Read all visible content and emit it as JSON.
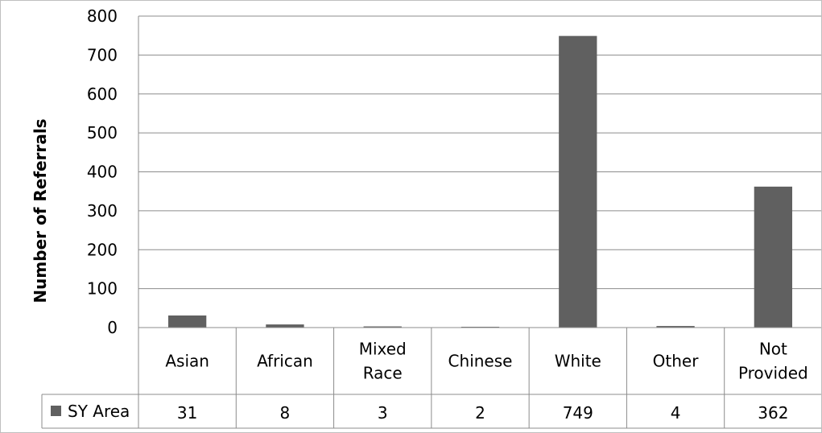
{
  "chart_data": {
    "type": "bar",
    "title": "",
    "xlabel": "",
    "ylabel": "Number of Referrals",
    "ylim": [
      0,
      800
    ],
    "yticks": [
      0,
      100,
      200,
      300,
      400,
      500,
      600,
      700,
      800
    ],
    "grid": true,
    "categories": [
      [
        "Asian"
      ],
      [
        "African"
      ],
      [
        "Mixed",
        "Race"
      ],
      [
        "Chinese"
      ],
      [
        "White"
      ],
      [
        "Other"
      ],
      [
        "Not",
        "Provided"
      ]
    ],
    "series": [
      {
        "name": "SY Area",
        "values": [
          31,
          8,
          3,
          2,
          749,
          4,
          362
        ],
        "color": "#606060"
      }
    ],
    "legend": "data-table"
  }
}
